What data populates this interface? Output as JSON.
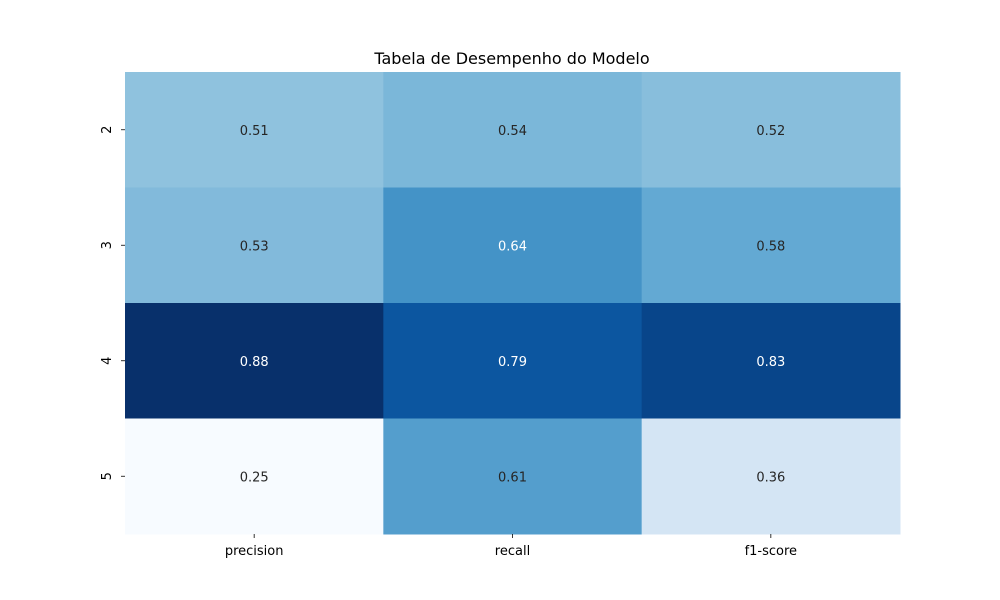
{
  "chart_data": {
    "type": "heatmap",
    "title": "Tabela de Desempenho do Modelo",
    "xlabel": "",
    "ylabel": "",
    "columns": [
      "precision",
      "recall",
      "f1-score"
    ],
    "rows": [
      "2",
      "3",
      "4",
      "5"
    ],
    "values": [
      [
        0.51,
        0.54,
        0.52
      ],
      [
        0.53,
        0.64,
        0.58
      ],
      [
        0.88,
        0.79,
        0.83
      ],
      [
        0.25,
        0.61,
        0.36
      ]
    ],
    "value_labels": [
      [
        "0.51",
        "0.54",
        "0.52"
      ],
      [
        "0.53",
        "0.64",
        "0.58"
      ],
      [
        "0.88",
        "0.79",
        "0.83"
      ],
      [
        "0.25",
        "0.61",
        "0.36"
      ]
    ],
    "colormap": "Blues",
    "vmin": 0.25,
    "vmax": 0.88,
    "colorbar": false,
    "grid": false
  }
}
